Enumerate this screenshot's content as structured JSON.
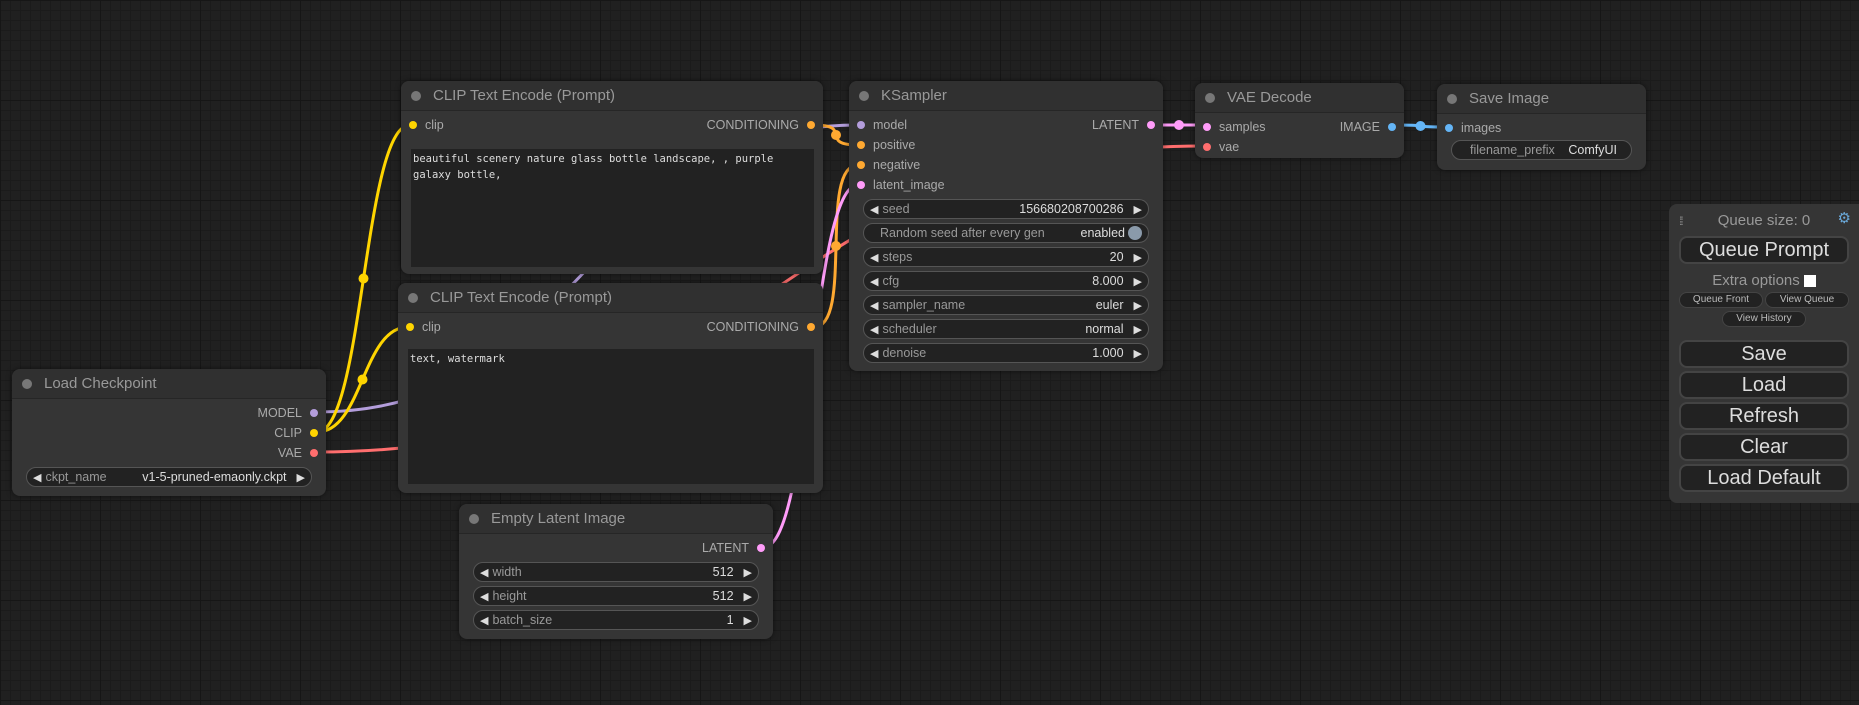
{
  "colors": {
    "model": "#b39ddb",
    "clip": "#ffd500",
    "vae": "#ff6e6e",
    "conditioning": "#ffa931",
    "latent": "#ff9cf9",
    "image": "#64b5f6"
  },
  "nodes": {
    "load_checkpoint": {
      "title": "Load Checkpoint",
      "outputs": [
        "MODEL",
        "CLIP",
        "VAE"
      ],
      "widgets": [
        {
          "label": "ckpt_name",
          "value": "v1-5-pruned-emaonly.ckpt"
        }
      ]
    },
    "clip_pos": {
      "title": "CLIP Text Encode (Prompt)",
      "input": "clip",
      "output": "CONDITIONING",
      "text": "beautiful scenery nature glass bottle landscape, , purple galaxy bottle,"
    },
    "clip_neg": {
      "title": "CLIP Text Encode (Prompt)",
      "input": "clip",
      "output": "CONDITIONING",
      "text": "text, watermark"
    },
    "empty_latent": {
      "title": "Empty Latent Image",
      "output": "LATENT",
      "widgets": [
        {
          "label": "width",
          "value": "512"
        },
        {
          "label": "height",
          "value": "512"
        },
        {
          "label": "batch_size",
          "value": "1"
        }
      ]
    },
    "ksampler": {
      "title": "KSampler",
      "inputs": [
        "model",
        "positive",
        "negative",
        "latent_image"
      ],
      "output": "LATENT",
      "widgets": [
        {
          "label": "seed",
          "value": "156680208700286"
        },
        {
          "label": "Random seed after every gen",
          "value": "enabled"
        },
        {
          "label": "steps",
          "value": "20"
        },
        {
          "label": "cfg",
          "value": "8.000"
        },
        {
          "label": "sampler_name",
          "value": "euler"
        },
        {
          "label": "scheduler",
          "value": "normal"
        },
        {
          "label": "denoise",
          "value": "1.000"
        }
      ]
    },
    "vae_decode": {
      "title": "VAE Decode",
      "inputs": [
        "samples",
        "vae"
      ],
      "output": "IMAGE"
    },
    "save_image": {
      "title": "Save Image",
      "input": "images",
      "widget": {
        "label": "filename_prefix",
        "value": "ComfyUI"
      }
    }
  },
  "panel": {
    "queue_size": "Queue size: 0",
    "queue_prompt": "Queue Prompt",
    "extra_options": "Extra options",
    "queue_front": "Queue Front",
    "view_queue": "View Queue",
    "view_history": "View History",
    "save": "Save",
    "load": "Load",
    "refresh": "Refresh",
    "clear": "Clear",
    "load_default": "Load Default"
  }
}
